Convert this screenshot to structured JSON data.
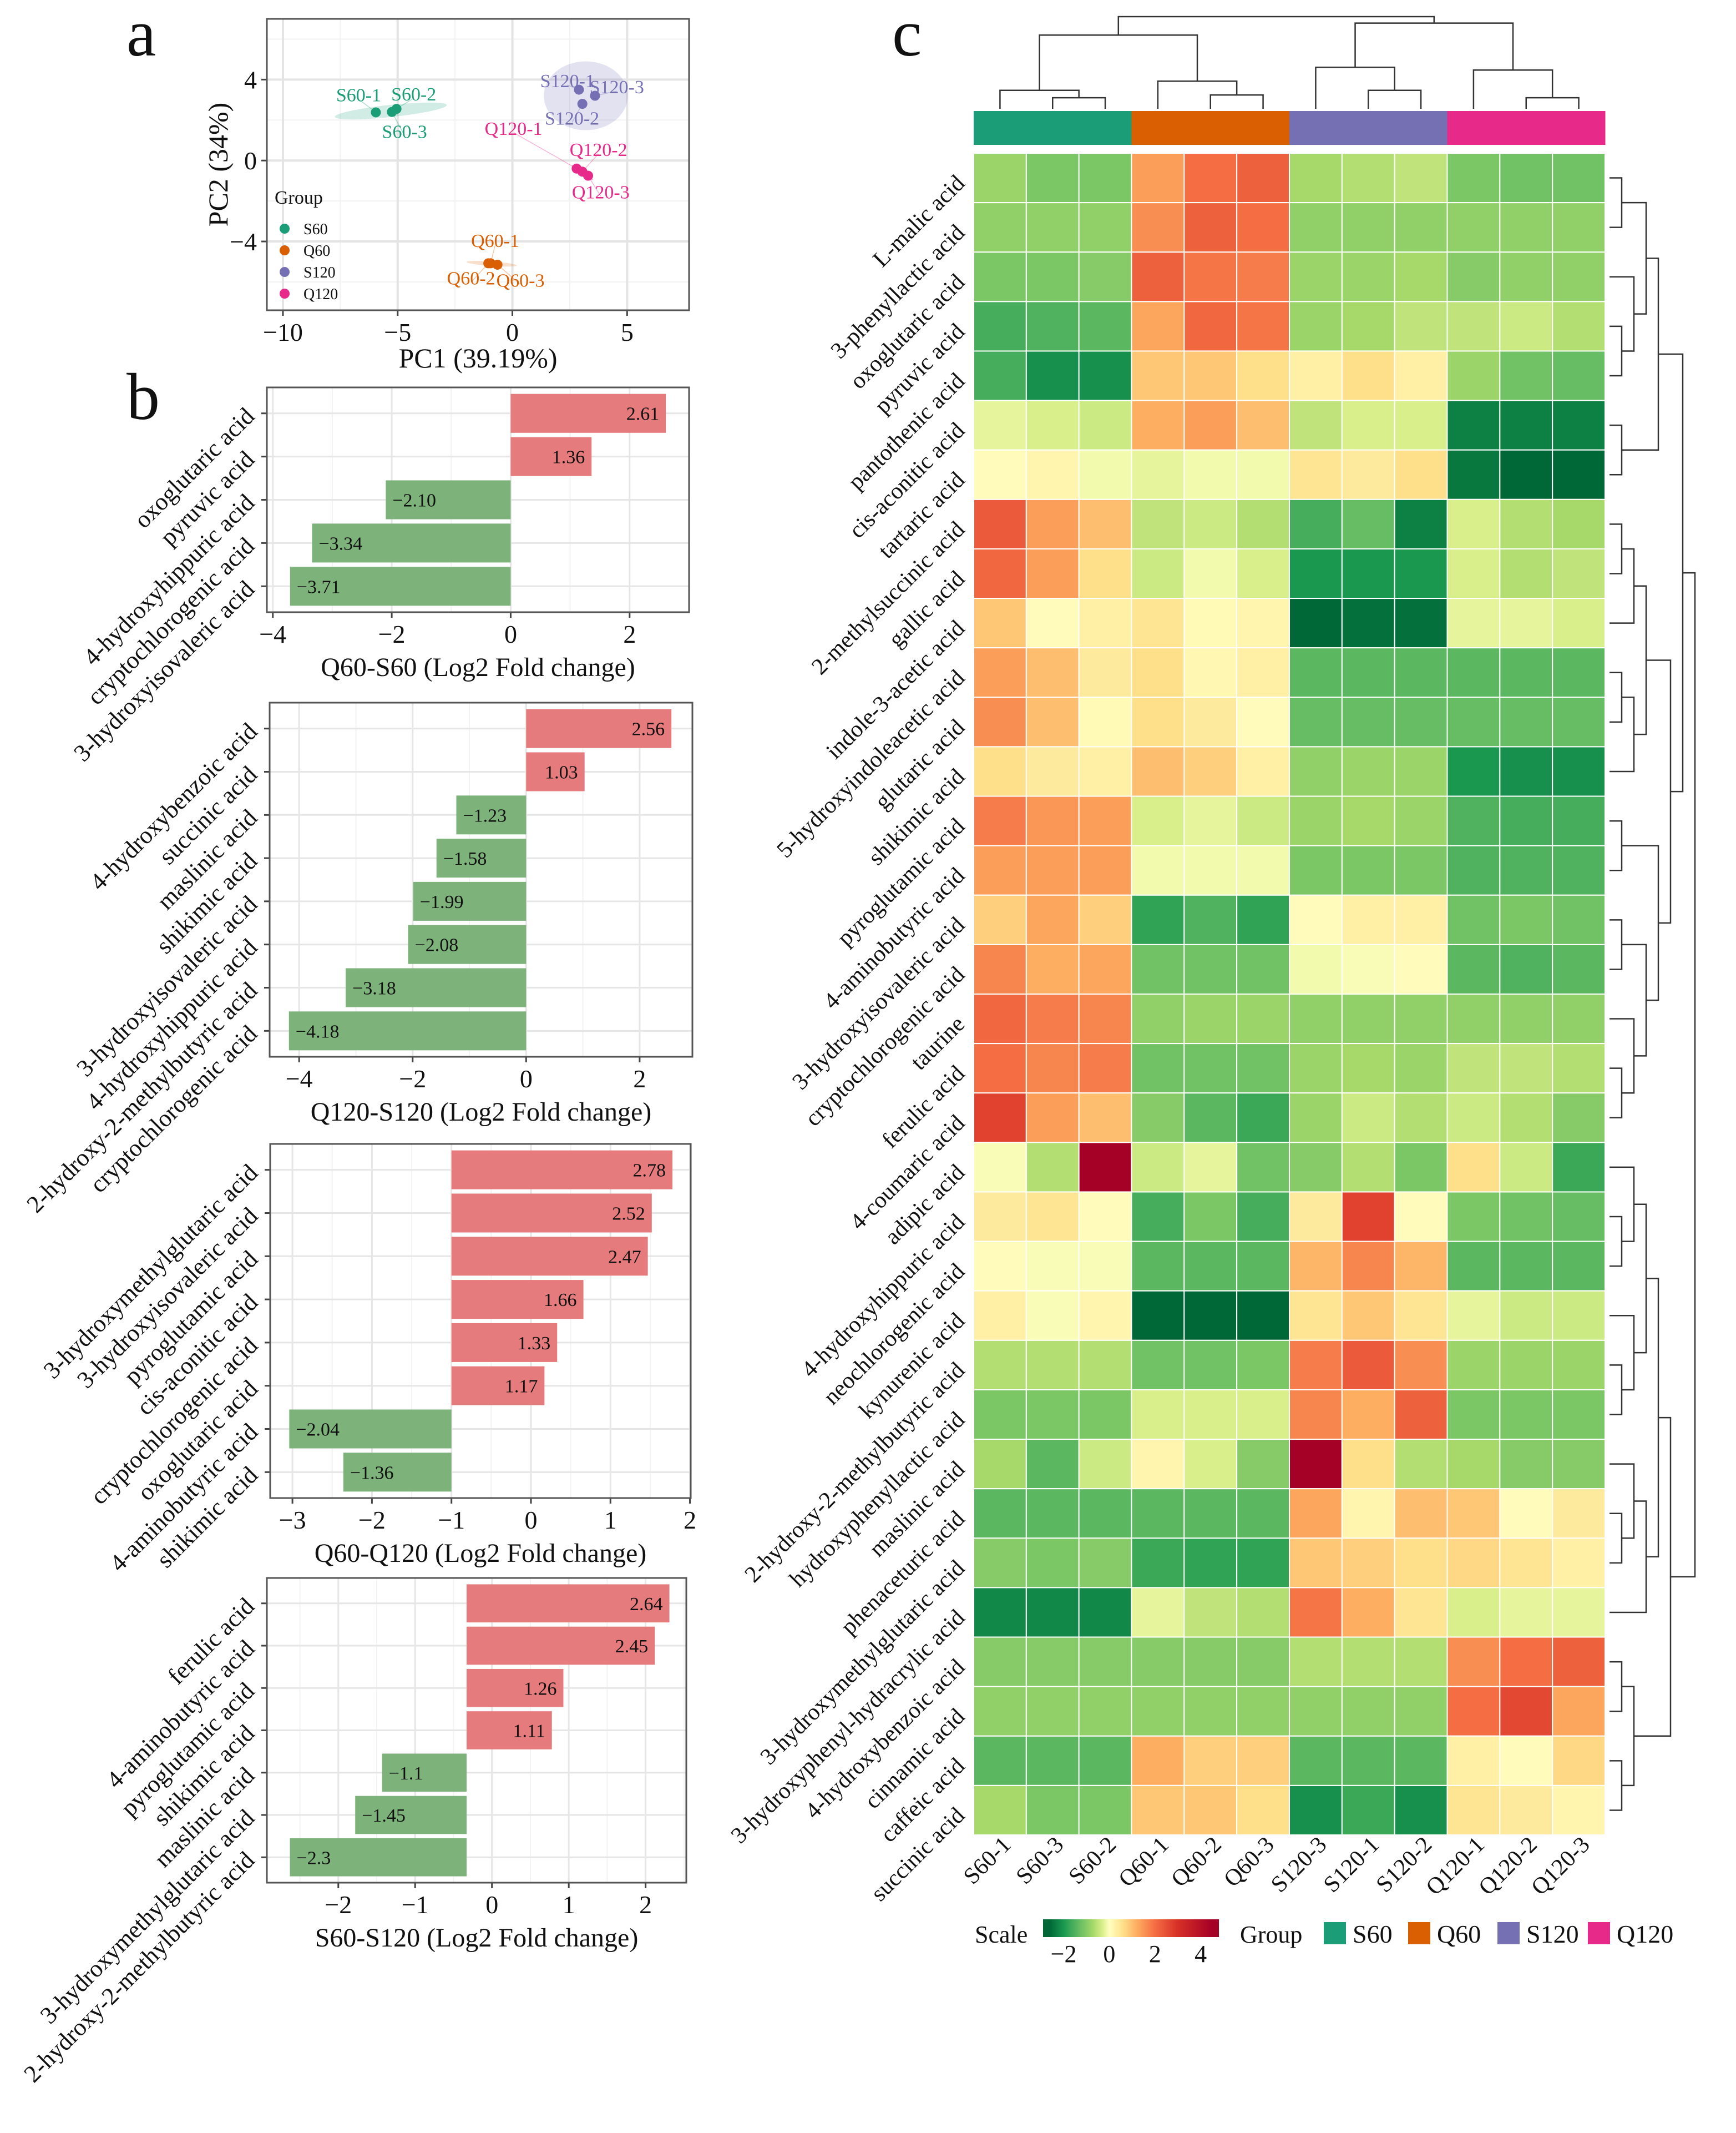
{
  "panel_labels": {
    "a": "a",
    "b": "b",
    "c": "c"
  },
  "colors": {
    "S60": "#1b9e77",
    "Q60": "#d95f02",
    "S120": "#7570b3",
    "Q120": "#e7298a",
    "bar_up": "#e57b7c",
    "bar_down": "#7db27b"
  },
  "chart_data": [
    {
      "type": "scatter",
      "panel": "a",
      "xlabel": "PC1 (39.19%)",
      "ylabel": "PC2 (34%)",
      "xlim": [
        -10.7,
        7.7
      ],
      "ylim": [
        -7.4,
        7.0
      ],
      "xticks": [
        -10,
        -5,
        0,
        5
      ],
      "yticks": [
        -4,
        0,
        4
      ],
      "xtick_labels": [
        "−10",
        "−5",
        "0",
        "5"
      ],
      "ytick_labels": [
        "−4",
        "0",
        "4"
      ],
      "grid": true,
      "legend": {
        "title": "Group",
        "placement": "bottom-left",
        "items": [
          "S60",
          "Q60",
          "S120",
          "Q120"
        ]
      },
      "points": [
        {
          "label": "S60-1",
          "group": "S60",
          "x": -5.95,
          "y": 2.38
        },
        {
          "label": "S60-2",
          "group": "S60",
          "x": -5.05,
          "y": 2.55
        },
        {
          "label": "S60-3",
          "group": "S60",
          "x": -5.25,
          "y": 2.4
        },
        {
          "label": "Q60-1",
          "group": "Q60",
          "x": -0.95,
          "y": -5.08
        },
        {
          "label": "Q60-2",
          "group": "Q60",
          "x": -1.05,
          "y": -5.08
        },
        {
          "label": "Q60-3",
          "group": "Q60",
          "x": -0.65,
          "y": -5.15
        },
        {
          "label": "S120-1",
          "group": "S120",
          "x": 2.9,
          "y": 3.5
        },
        {
          "label": "S120-2",
          "group": "S120",
          "x": 3.05,
          "y": 2.8
        },
        {
          "label": "S120-3",
          "group": "S120",
          "x": 3.6,
          "y": 3.2
        },
        {
          "label": "Q120-1",
          "group": "Q120",
          "x": 2.8,
          "y": -0.4
        },
        {
          "label": "Q120-2",
          "group": "Q120",
          "x": 3.05,
          "y": -0.55
        },
        {
          "label": "Q120-3",
          "group": "Q120",
          "x": 3.3,
          "y": -0.75
        }
      ]
    },
    {
      "type": "bar",
      "panel": "b",
      "orientation": "horizontal",
      "xlabel": "Q60-S60 (Log2 Fold change)",
      "xlim": [
        -4.1,
        3.0
      ],
      "baseline": 0,
      "xticks": [
        -4,
        -2,
        0,
        2
      ],
      "xtick_labels": [
        "−4",
        "−2",
        "0",
        "2"
      ],
      "categories": [
        "oxoglutaric acid",
        "pyruvic acid",
        "4-hydroxyhippuric acid",
        "cryptochlorogenic acid",
        "3-hydroxyisovaleric acid"
      ],
      "values": [
        2.61,
        1.36,
        -2.1,
        -3.34,
        -3.71
      ],
      "value_labels": [
        "2.61",
        "1.36",
        "−2.10",
        "−3.34",
        "−3.71"
      ]
    },
    {
      "type": "bar",
      "panel": "b",
      "orientation": "horizontal",
      "xlabel": "Q120-S120 (Log2 Fold change)",
      "xlim": [
        -4.52,
        2.93
      ],
      "baseline": 0,
      "xticks": [
        -4,
        -2,
        0,
        2
      ],
      "xtick_labels": [
        "−4",
        "−2",
        "0",
        "2"
      ],
      "categories": [
        "4-hydroxybenzoic acid",
        "succinic acid",
        "maslinic acid",
        "shikimic acid",
        "3-hydroxyisovaleric acid",
        "4-hydroxyhippuric acid",
        "2-hydroxy-2-methylbutyric acid",
        "cryptochlorogenic acid"
      ],
      "values": [
        2.56,
        1.03,
        -1.23,
        -1.58,
        -1.99,
        -2.08,
        -3.18,
        -4.18
      ],
      "value_labels": [
        "2.56",
        "1.03",
        "−1.23",
        "−1.58",
        "−1.99",
        "−2.08",
        "−3.18",
        "−4.18"
      ]
    },
    {
      "type": "bar",
      "panel": "b",
      "orientation": "horizontal",
      "xlabel": "Q60-Q120 (Log2 Fold change)",
      "xlim": [
        -3.28,
        2.01
      ],
      "baseline": -1,
      "xticks": [
        -3,
        -2,
        -1,
        0,
        1,
        2
      ],
      "xtick_labels": [
        "−3",
        "−2",
        "−1",
        "0",
        "1",
        "2"
      ],
      "categories": [
        "3-hydroxymethylglutaric acid",
        "3-hydroxyisovaleric acid",
        "pyroglutamic acid",
        "cis-aconitic acid",
        "cryptochlorogenic acid",
        "oxoglutaric acid",
        "4-aminobutyric acid",
        "shikimic acid"
      ],
      "values": [
        2.78,
        2.52,
        2.47,
        1.66,
        1.33,
        1.17,
        -2.04,
        -1.36
      ],
      "value_labels": [
        "2.78",
        "2.52",
        "2.47",
        "1.66",
        "1.33",
        "1.17",
        "−2.04",
        "−1.36"
      ]
    },
    {
      "type": "bar",
      "panel": "b",
      "orientation": "horizontal",
      "xlabel": "S60-S120 (Log2 Fold change)",
      "xlim": [
        -2.93,
        2.53
      ],
      "baseline": -0.33,
      "xticks": [
        -2,
        -1,
        0,
        1,
        2
      ],
      "xtick_labels": [
        "−2",
        "−1",
        "0",
        "1",
        "2"
      ],
      "categories": [
        "ferulic acid",
        "4-aminobutyric acid",
        "pyroglutamic acid",
        "shikimic acid",
        "maslinic acid",
        "3-hydroxymethylglutaric acid",
        "2-hydroxy-2-methylbutyric acid"
      ],
      "values": [
        2.64,
        2.45,
        1.26,
        1.11,
        -1.1,
        -1.45,
        -2.3
      ],
      "value_labels": [
        "2.64",
        "2.45",
        "1.26",
        "1.11",
        "−1.1",
        "−1.45",
        "−2.3"
      ]
    },
    {
      "type": "heatmap",
      "panel": "c",
      "columns": [
        "S60-1",
        "S60-3",
        "S60-2",
        "Q60-1",
        "Q60-2",
        "Q60-3",
        "S120-3",
        "S120-1",
        "S120-2",
        "Q120-1",
        "Q120-2",
        "Q120-3"
      ],
      "column_groups": [
        "S60",
        "S60",
        "S60",
        "Q60",
        "Q60",
        "Q60",
        "S120",
        "S120",
        "S120",
        "Q120",
        "Q120",
        "Q120"
      ],
      "rows": [
        "L-malic acid",
        "3-phenyllactic acid",
        "oxoglutaric acid",
        "pyruvic acid",
        "pantothenic acid",
        "cis-aconitic acid",
        "tartaric acid",
        "2-methylsuccinic acid",
        "gallic acid",
        "indole-3-acetic acid",
        "5-hydroxyindoleacetic acid",
        "glutaric acid",
        "shikimic acid",
        "pyroglutamic acid",
        "4-aminobutyric acid",
        "3-hydroxyisovaleric acid",
        "cryptochlorogenic acid",
        "taurine",
        "ferulic acid",
        "4-coumaric acid",
        "adipic acid",
        "4-hydroxyhippuric acid",
        "neochlorogenic acid",
        "kynurenic acid",
        "2-hydroxy-2-methylbutyric acid",
        "hydroxyphenyllactic acid",
        "maslinic acid",
        "phenaceturic acid",
        "3-hydroxymethylglutaric acid",
        "3-hydroxyphenyl-hydracrylic acid",
        "4-hydroxybenzoic acid",
        "cinnamic acid",
        "caffeic acid",
        "succinic acid"
      ],
      "values": [
        [
          -0.8,
          -1.1,
          -1.1,
          1.4,
          2.0,
          2.2,
          -0.7,
          -0.6,
          -0.5,
          -1.1,
          -1.2,
          -1.2
        ],
        [
          -0.9,
          -0.9,
          -0.9,
          1.6,
          2.2,
          2.0,
          -0.9,
          -0.9,
          -0.9,
          -0.9,
          -0.9,
          -0.9
        ],
        [
          -1.1,
          -1.1,
          -1.0,
          2.2,
          1.9,
          1.8,
          -0.8,
          -0.8,
          -0.7,
          -1.0,
          -0.9,
          -0.9
        ],
        [
          -1.6,
          -1.5,
          -1.4,
          1.3,
          2.1,
          1.9,
          -0.8,
          -0.7,
          -0.5,
          -0.5,
          -0.4,
          -0.6
        ],
        [
          -1.6,
          -2.1,
          -2.1,
          0.9,
          0.9,
          0.6,
          0.3,
          0.6,
          0.3,
          -0.8,
          -1.2,
          -1.3
        ],
        [
          -0.2,
          -0.3,
          -0.4,
          1.2,
          1.4,
          1.0,
          -0.5,
          -0.3,
          -0.3,
          -2.3,
          -2.3,
          -2.3
        ],
        [
          0.05,
          0.2,
          -0.1,
          -0.2,
          -0.1,
          -0.1,
          0.5,
          0.4,
          0.6,
          -2.4,
          -2.7,
          -2.7
        ],
        [
          2.3,
          1.4,
          1.0,
          -0.5,
          -0.4,
          -0.6,
          -1.6,
          -1.3,
          -2.3,
          -0.3,
          -0.6,
          -0.7
        ],
        [
          2.1,
          1.4,
          0.6,
          -0.4,
          -0.1,
          -0.3,
          -2.0,
          -2.0,
          -2.0,
          -0.3,
          -0.6,
          -0.5
        ],
        [
          0.9,
          0.05,
          0.3,
          0.5,
          0.1,
          0.2,
          -2.6,
          -2.5,
          -2.5,
          -0.2,
          -0.2,
          -0.3
        ],
        [
          1.4,
          1.0,
          0.4,
          0.6,
          0.15,
          0.3,
          -1.4,
          -1.4,
          -1.4,
          -1.4,
          -1.4,
          -1.4
        ],
        [
          1.6,
          1.0,
          0.1,
          0.6,
          0.4,
          0.05,
          -1.3,
          -1.3,
          -1.3,
          -1.3,
          -1.3,
          -1.3
        ],
        [
          0.6,
          0.4,
          0.3,
          1.0,
          0.8,
          0.3,
          -0.9,
          -0.8,
          -0.8,
          -2.0,
          -2.1,
          -2.1
        ],
        [
          1.8,
          1.5,
          1.4,
          -0.3,
          -0.2,
          -0.4,
          -0.8,
          -0.7,
          -0.8,
          -1.5,
          -1.6,
          -1.6
        ],
        [
          1.4,
          1.4,
          1.4,
          -0.1,
          -0.1,
          -0.1,
          -1.1,
          -1.1,
          -1.1,
          -1.5,
          -1.5,
          -1.5
        ],
        [
          0.8,
          1.3,
          0.8,
          -1.8,
          -1.5,
          -1.8,
          0.05,
          0.3,
          0.3,
          -1.2,
          -1.1,
          -1.2
        ],
        [
          1.7,
          1.2,
          1.3,
          -1.2,
          -1.2,
          -1.2,
          -0.1,
          -0.05,
          0.05,
          -1.4,
          -1.5,
          -1.4
        ],
        [
          2.1,
          1.8,
          1.7,
          -0.9,
          -0.8,
          -0.8,
          -0.9,
          -0.9,
          -0.9,
          -0.9,
          -0.9,
          -0.9
        ],
        [
          2.0,
          1.7,
          1.8,
          -1.2,
          -1.2,
          -1.2,
          -0.8,
          -0.7,
          -0.8,
          -0.5,
          -0.5,
          -0.6
        ],
        [
          2.7,
          1.4,
          1.0,
          -1.0,
          -1.4,
          -1.7,
          -0.8,
          -0.4,
          -0.6,
          -0.4,
          -0.6,
          -1.0
        ],
        [
          -0.05,
          -0.6,
          4.5,
          -0.4,
          -0.2,
          -1.2,
          -1.0,
          -0.6,
          -1.1,
          0.6,
          -0.4,
          -1.7
        ],
        [
          0.4,
          0.5,
          0.05,
          -1.6,
          -1.1,
          -1.6,
          0.4,
          2.7,
          0.05,
          -1.1,
          -1.2,
          -1.3
        ],
        [
          0.05,
          -0.05,
          -0.05,
          -1.4,
          -1.4,
          -1.4,
          1.1,
          1.7,
          1.1,
          -1.4,
          -1.4,
          -1.4
        ],
        [
          0.3,
          -0.05,
          0.2,
          -2.6,
          -2.6,
          -2.6,
          0.5,
          0.9,
          0.5,
          -0.2,
          -0.4,
          -0.4
        ],
        [
          -0.6,
          -0.6,
          -0.6,
          -1.2,
          -1.2,
          -1.1,
          1.8,
          2.3,
          1.6,
          -0.8,
          -0.8,
          -0.8
        ],
        [
          -1.1,
          -1.1,
          -1.1,
          -0.3,
          -0.3,
          -0.3,
          1.7,
          1.2,
          2.2,
          -1.1,
          -1.1,
          -1.1
        ],
        [
          -0.7,
          -1.4,
          -0.4,
          0.2,
          -0.3,
          -1.0,
          4.5,
          0.6,
          -0.6,
          -0.7,
          -1.0,
          -1.0
        ],
        [
          -1.4,
          -1.4,
          -1.4,
          -1.4,
          -1.4,
          -1.4,
          1.3,
          0.2,
          1.0,
          0.9,
          0.05,
          0.4
        ],
        [
          -1.0,
          -1.1,
          -1.0,
          -1.7,
          -1.8,
          -1.8,
          0.9,
          0.8,
          0.6,
          0.7,
          0.5,
          0.3
        ],
        [
          -2.2,
          -2.2,
          -2.2,
          -0.2,
          -0.5,
          -0.6,
          1.9,
          1.2,
          0.5,
          -0.3,
          -0.2,
          -0.2
        ],
        [
          -1.0,
          -1.0,
          -1.0,
          -1.0,
          -1.0,
          -1.0,
          -0.6,
          -0.6,
          -0.6,
          1.6,
          2.0,
          2.2
        ],
        [
          -0.9,
          -0.9,
          -0.9,
          -0.9,
          -0.9,
          -0.9,
          -0.9,
          -0.9,
          -0.9,
          2.0,
          2.6,
          1.3
        ],
        [
          -1.4,
          -1.4,
          -1.4,
          1.2,
          0.8,
          0.8,
          -1.4,
          -1.4,
          -1.4,
          0.3,
          0.05,
          0.7
        ],
        [
          -0.7,
          -1.1,
          -1.1,
          0.9,
          0.9,
          0.6,
          -2.1,
          -1.7,
          -2.1,
          0.5,
          0.4,
          0.2
        ]
      ],
      "scale_range": [
        -2.9,
        4.8
      ],
      "color_stops": [
        [
          -2.6,
          "#006837"
        ],
        [
          -2.0,
          "#1a9850"
        ],
        [
          -1.3,
          "#66bd63"
        ],
        [
          -0.7,
          "#a6d96a"
        ],
        [
          -0.3,
          "#d9ef8b"
        ],
        [
          0,
          "#ffffbf"
        ],
        [
          0.6,
          "#fee08b"
        ],
        [
          1.2,
          "#fdae61"
        ],
        [
          2.0,
          "#f46d43"
        ],
        [
          3.0,
          "#d73027"
        ],
        [
          4.5,
          "#a50026"
        ]
      ],
      "legend": {
        "scale_title": "Scale",
        "scale_ticks": [
          -2,
          0,
          2,
          4
        ],
        "scale_tick_labels": [
          "−2",
          "0",
          "2",
          "4"
        ],
        "group_title": "Group",
        "groups": [
          "S60",
          "Q60",
          "S120",
          "Q120"
        ]
      }
    }
  ]
}
